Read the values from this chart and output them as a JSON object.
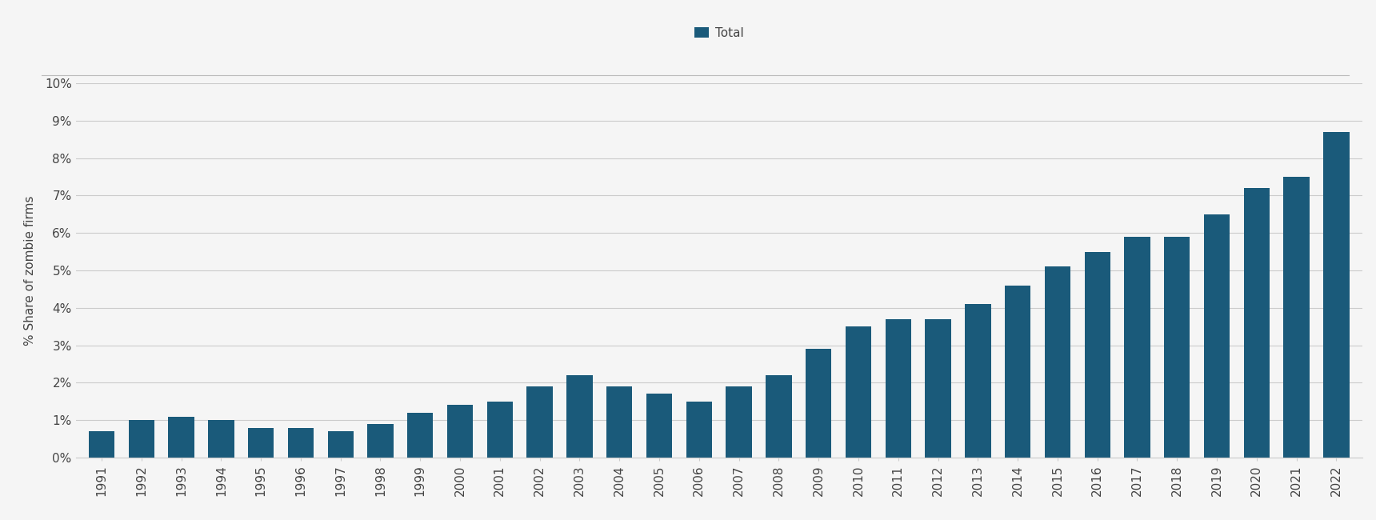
{
  "years": [
    1991,
    1992,
    1993,
    1994,
    1995,
    1996,
    1997,
    1998,
    1999,
    2000,
    2001,
    2002,
    2003,
    2004,
    2005,
    2006,
    2007,
    2008,
    2009,
    2010,
    2011,
    2012,
    2013,
    2014,
    2015,
    2016,
    2017,
    2018,
    2019,
    2020,
    2021,
    2022
  ],
  "values": [
    0.007,
    0.01,
    0.011,
    0.01,
    0.008,
    0.008,
    0.007,
    0.009,
    0.012,
    0.014,
    0.015,
    0.019,
    0.022,
    0.019,
    0.017,
    0.015,
    0.019,
    0.022,
    0.029,
    0.035,
    0.037,
    0.037,
    0.041,
    0.046,
    0.051,
    0.055,
    0.059,
    0.059,
    0.065,
    0.072,
    0.075,
    0.087
  ],
  "bar_color": "#1a5a7a",
  "legend_label": "Total",
  "ylabel": "% Share of zombie firms",
  "ylim": [
    0,
    0.1
  ],
  "ytick_vals": [
    0,
    0.01,
    0.02,
    0.03,
    0.04,
    0.05,
    0.06,
    0.07,
    0.08,
    0.09,
    0.1
  ],
  "ytick_labels": [
    "0%",
    "1%",
    "2%",
    "3%",
    "4%",
    "5%",
    "6%",
    "7%",
    "8%",
    "9%",
    "10%"
  ],
  "background_color": "#f5f5f5",
  "plot_bg_color": "#f5f5f5",
  "grid_color": "#cccccc",
  "tick_fontsize": 11,
  "ylabel_fontsize": 11,
  "legend_fontsize": 11,
  "separator_color": "#bbbbbb"
}
